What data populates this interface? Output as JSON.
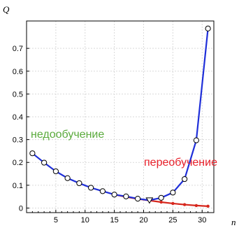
{
  "chart_data": {
    "type": "line",
    "ylabel": "Q",
    "xlabel": "n",
    "xlim": [
      0,
      32
    ],
    "ylim": [
      -0.02,
      0.82
    ],
    "x_ticks": [
      "5",
      "10",
      "15",
      "20",
      "25",
      "30"
    ],
    "y_ticks": [
      "0",
      "0.1",
      "0.2",
      "0.3",
      "0.4",
      "0.5",
      "0.6",
      "0.7"
    ],
    "grid": true,
    "annotations": [
      {
        "text": "недообучение",
        "color": "#5aaa3c"
      },
      {
        "text": "переобучение",
        "color": "#e8212b"
      }
    ],
    "series": [
      {
        "color": "#1f2fd9",
        "marker": "circle",
        "x": [
          1,
          3,
          5,
          7,
          9,
          11,
          13,
          15,
          17,
          19,
          21,
          23,
          25,
          27,
          29,
          31
        ],
        "y": [
          0.24,
          0.199,
          0.161,
          0.131,
          0.109,
          0.089,
          0.074,
          0.059,
          0.051,
          0.041,
          0.034,
          0.045,
          0.068,
          0.127,
          0.297,
          0.787
        ]
      },
      {
        "color": "#d6261c",
        "marker": "none",
        "x": [
          15,
          17,
          19,
          21,
          23,
          25,
          27,
          29,
          31
        ],
        "y": [
          0.059,
          0.049,
          0.04,
          0.033,
          0.026,
          0.02,
          0.015,
          0.011,
          0.008
        ]
      }
    ],
    "special_point": {
      "x": 21,
      "y": 0.034,
      "marker": "triangle-down"
    }
  }
}
